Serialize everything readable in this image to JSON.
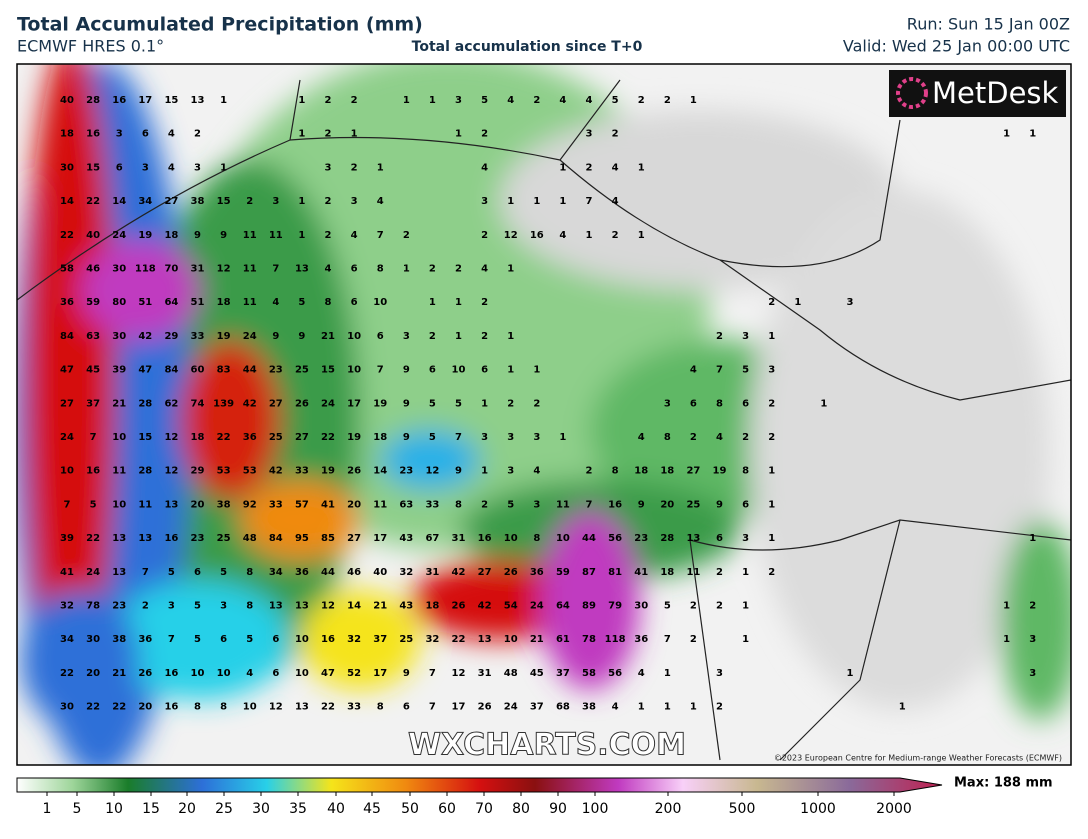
{
  "header": {
    "title": "Total Accumulated Precipitation (mm)",
    "model": "ECMWF HRES 0.1°",
    "subtitle": "Total accumulation since T+0",
    "run": "Run: Sun 15 Jan 00Z",
    "valid": "Valid: Wed 25 Jan 00:00 UTC"
  },
  "logo": "MetDesk",
  "watermark": "WXCHARTS.COM",
  "copyright": "©2023 European Centre for Medium-range Weather Forecasts (ECMWF)",
  "grid": {
    "rows": [
      [
        40,
        28,
        16,
        17,
        15,
        13,
        1,
        null,
        null,
        1,
        2,
        2,
        null,
        1,
        1,
        3,
        5,
        4,
        2,
        4,
        4,
        5,
        2,
        2,
        1,
        null,
        null,
        null,
        null,
        null,
        null,
        null,
        null,
        null,
        null,
        null,
        null,
        null
      ],
      [
        18,
        16,
        3,
        6,
        4,
        2,
        null,
        null,
        null,
        1,
        2,
        1,
        null,
        null,
        null,
        1,
        2,
        null,
        null,
        null,
        3,
        2,
        null,
        null,
        null,
        null,
        null,
        null,
        null,
        null,
        null,
        null,
        null,
        null,
        null,
        null,
        1,
        1
      ],
      [
        30,
        15,
        6,
        3,
        4,
        3,
        1,
        null,
        null,
        null,
        3,
        2,
        1,
        null,
        null,
        null,
        4,
        null,
        null,
        1,
        2,
        4,
        1,
        null,
        null,
        null,
        null,
        null,
        null,
        null,
        null,
        null,
        null,
        null,
        null,
        null,
        null,
        null
      ],
      [
        14,
        22,
        14,
        34,
        27,
        38,
        15,
        2,
        3,
        1,
        2,
        3,
        4,
        null,
        null,
        null,
        3,
        1,
        1,
        1,
        7,
        4,
        null,
        null,
        null,
        null,
        null,
        null,
        null,
        null,
        null,
        null,
        null,
        null,
        null,
        null,
        null,
        null
      ],
      [
        22,
        40,
        24,
        19,
        18,
        9,
        9,
        11,
        11,
        1,
        2,
        4,
        7,
        2,
        null,
        null,
        2,
        12,
        16,
        4,
        1,
        2,
        1,
        null,
        null,
        null,
        null,
        null,
        null,
        null,
        null,
        null,
        null,
        null,
        null,
        null,
        null,
        null
      ],
      [
        58,
        46,
        30,
        118,
        70,
        31,
        12,
        11,
        7,
        13,
        4,
        6,
        8,
        1,
        2,
        2,
        4,
        1,
        null,
        null,
        null,
        null,
        null,
        null,
        null,
        null,
        null,
        null,
        null,
        null,
        null,
        null,
        null,
        null,
        null,
        null,
        null,
        null
      ],
      [
        36,
        59,
        80,
        51,
        64,
        51,
        18,
        11,
        4,
        5,
        8,
        6,
        10,
        null,
        1,
        1,
        2,
        null,
        null,
        null,
        null,
        null,
        null,
        null,
        null,
        null,
        null,
        2,
        1,
        null,
        3,
        null,
        null,
        null,
        null,
        null,
        null,
        null
      ],
      [
        84,
        63,
        30,
        42,
        29,
        33,
        19,
        24,
        9,
        9,
        21,
        10,
        6,
        3,
        2,
        1,
        2,
        1,
        null,
        null,
        null,
        null,
        null,
        null,
        null,
        2,
        3,
        1,
        null,
        null,
        null,
        null,
        null,
        null,
        null,
        null,
        null,
        null
      ],
      [
        47,
        45,
        39,
        47,
        84,
        60,
        83,
        44,
        23,
        25,
        15,
        10,
        7,
        9,
        6,
        10,
        6,
        1,
        1,
        null,
        null,
        null,
        null,
        null,
        4,
        7,
        5,
        3,
        null,
        null,
        null,
        null,
        null,
        null,
        null,
        null,
        null,
        null
      ],
      [
        27,
        37,
        21,
        28,
        62,
        74,
        139,
        42,
        27,
        26,
        24,
        17,
        19,
        9,
        5,
        5,
        1,
        2,
        2,
        null,
        null,
        null,
        null,
        3,
        6,
        8,
        6,
        2,
        null,
        1,
        null,
        null,
        null,
        null,
        null,
        null,
        null,
        null
      ],
      [
        24,
        7,
        10,
        15,
        12,
        18,
        22,
        36,
        25,
        27,
        22,
        19,
        18,
        9,
        5,
        7,
        3,
        3,
        3,
        1,
        null,
        null,
        4,
        8,
        2,
        4,
        2,
        2,
        null,
        null,
        null,
        null,
        null,
        null,
        null,
        null,
        null,
        null
      ],
      [
        10,
        16,
        11,
        28,
        12,
        29,
        53,
        53,
        42,
        33,
        19,
        26,
        14,
        23,
        12,
        9,
        1,
        3,
        4,
        null,
        2,
        8,
        18,
        18,
        27,
        19,
        8,
        1,
        null,
        null,
        null,
        null,
        null,
        null,
        null,
        null,
        null,
        null
      ],
      [
        7,
        5,
        10,
        11,
        13,
        20,
        38,
        92,
        33,
        57,
        41,
        20,
        11,
        63,
        33,
        8,
        2,
        5,
        3,
        11,
        7,
        16,
        9,
        20,
        25,
        9,
        6,
        1,
        null,
        null,
        null,
        null,
        null,
        null,
        null,
        null,
        null,
        null
      ],
      [
        39,
        22,
        13,
        13,
        16,
        23,
        25,
        48,
        84,
        95,
        85,
        27,
        17,
        43,
        67,
        31,
        16,
        10,
        8,
        10,
        44,
        56,
        23,
        28,
        13,
        6,
        3,
        1,
        null,
        null,
        null,
        null,
        null,
        null,
        null,
        null,
        null,
        1
      ],
      [
        41,
        24,
        13,
        7,
        5,
        6,
        5,
        8,
        34,
        36,
        44,
        46,
        40,
        32,
        31,
        42,
        27,
        26,
        36,
        59,
        87,
        81,
        41,
        18,
        11,
        2,
        1,
        2,
        null,
        null,
        null,
        null,
        null,
        null,
        null,
        null,
        null,
        null
      ],
      [
        32,
        78,
        23,
        2,
        3,
        5,
        3,
        8,
        13,
        13,
        12,
        14,
        21,
        43,
        18,
        26,
        42,
        54,
        24,
        64,
        89,
        79,
        30,
        5,
        2,
        2,
        1,
        null,
        null,
        null,
        null,
        null,
        null,
        null,
        null,
        null,
        1,
        2
      ],
      [
        34,
        30,
        38,
        36,
        7,
        5,
        6,
        5,
        6,
        10,
        16,
        32,
        37,
        25,
        32,
        22,
        13,
        10,
        21,
        61,
        78,
        118,
        36,
        7,
        2,
        null,
        1,
        null,
        null,
        null,
        null,
        null,
        null,
        null,
        null,
        null,
        1,
        3
      ],
      [
        22,
        20,
        21,
        26,
        16,
        10,
        10,
        4,
        6,
        10,
        47,
        52,
        17,
        9,
        7,
        12,
        31,
        48,
        45,
        37,
        58,
        56,
        4,
        1,
        null,
        3,
        null,
        null,
        null,
        null,
        1,
        null,
        null,
        null,
        null,
        null,
        null,
        3
      ],
      [
        30,
        22,
        22,
        20,
        16,
        8,
        8,
        10,
        12,
        13,
        22,
        33,
        8,
        6,
        7,
        17,
        26,
        24,
        37,
        68,
        38,
        4,
        1,
        1,
        1,
        2,
        null,
        null,
        null,
        null,
        null,
        null,
        1,
        null,
        null,
        null,
        null,
        null
      ]
    ]
  },
  "legend": {
    "ticks": [
      1,
      5,
      10,
      15,
      20,
      25,
      30,
      35,
      40,
      45,
      50,
      60,
      70,
      80,
      90,
      100,
      200,
      500,
      1000,
      2000
    ],
    "max": "Max: 188 mm"
  }
}
